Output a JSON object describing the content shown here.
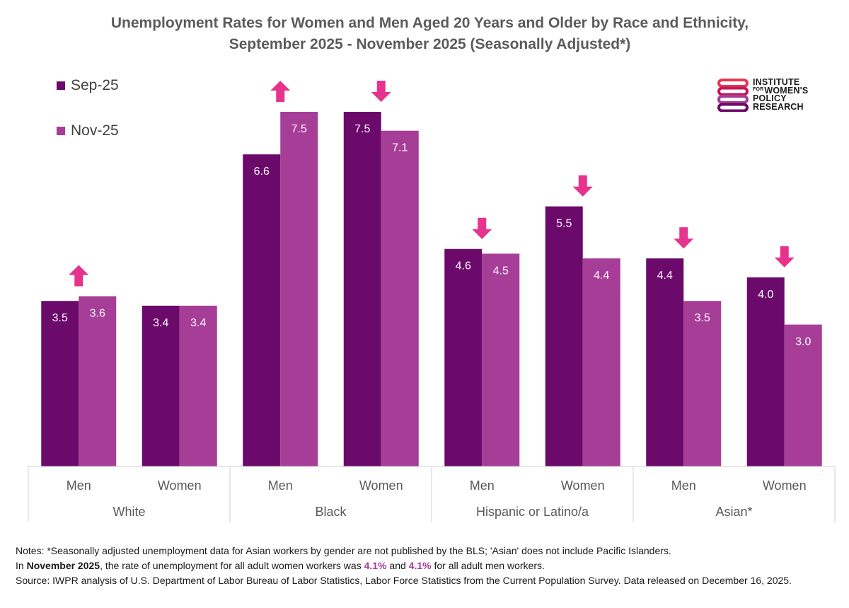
{
  "title_line1": "Unemployment Rates for Women and Men Aged 20 Years and Older by Race and Ethnicity,",
  "title_line2": "September 2025 - November 2025 (Seasonally Adjusted*)",
  "logo": {
    "line1": "INSTITUTE",
    "line2_small": "FOR",
    "line2": "WOMEN'S",
    "line3": "POLICY",
    "line4": "RESEARCH",
    "colors": [
      "#e8364f",
      "#c2185b",
      "#a63d97",
      "#6b0a6b"
    ]
  },
  "notes": {
    "line1": "Notes: *Seasonally adjusted unemployment data for Asian workers by gender are not published by the BLS; 'Asian' does not include Pacific Islanders.",
    "line2_prefix": "In ",
    "line2_bold": "November 2025",
    "line2_mid": ", the rate of unemployment for all adult women workers was ",
    "women_rate": "4.1%",
    "line2_and": " and ",
    "men_rate": "4.1%",
    "line2_suffix": " for all adult men workers.",
    "line3": "Source: IWPR analysis of U.S. Department of Labor Bureau of Labor Statistics, Labor Force Statistics from the Current Population Survey. Data released on December 16, 2025."
  },
  "chart_data": {
    "type": "bar",
    "title": "Unemployment Rates for Women and Men Aged 20 Years and Older by Race and Ethnicity, September 2025 - November 2025 (Seasonally Adjusted*)",
    "groups": [
      "White",
      "Black",
      "Hispanic or Latino/a",
      "Asian*"
    ],
    "categories": [
      "Men",
      "Women",
      "Men",
      "Women",
      "Men",
      "Women",
      "Men",
      "Women"
    ],
    "series": [
      {
        "name": "Sep-25",
        "color": "#6b0a6b",
        "values": [
          3.5,
          3.4,
          6.6,
          7.5,
          4.6,
          5.5,
          4.4,
          4.0
        ]
      },
      {
        "name": "Nov-25",
        "color": "#a63d97",
        "values": [
          3.6,
          3.4,
          7.5,
          7.1,
          4.5,
          4.4,
          3.5,
          3.0
        ]
      }
    ],
    "change_arrows": [
      "up",
      "none",
      "up",
      "down",
      "down",
      "down",
      "down",
      "down"
    ],
    "arrow_color": "#e5338e",
    "label_color": "#ffffff",
    "ylim": [
      0,
      7.5
    ],
    "grid": false,
    "legend_position": "top-left"
  }
}
